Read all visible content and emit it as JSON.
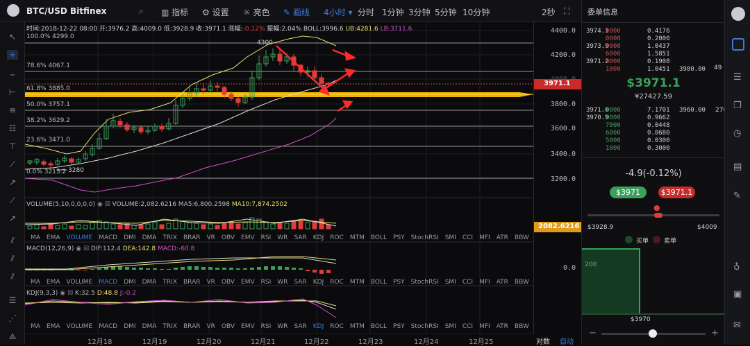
{
  "topbar": {
    "pair": "BTC/USD Bitfinex",
    "indicator": "指标",
    "settings": "设置",
    "brightness": "亮色",
    "draw": "画线",
    "interval_active": "4小时",
    "t1": "分时",
    "t2": "1分钟",
    "t3": "3分钟",
    "t4": "5分钟",
    "t5": "10分钟",
    "refresh": "2秒"
  },
  "info": {
    "time": "时间:2018-12-22 08:00",
    "open": "开:3976.2",
    "high": "高:4009.0",
    "low": "低:3928.9",
    "close": "收:3971.1",
    "chg_label": "涨幅:",
    "chg": "-0.12%",
    "amp": "振幅:2.04%",
    "boll": "BOLL:3996.6",
    "ub": "UB:4281.6",
    "lb": "LB:3711.6"
  },
  "fib": [
    {
      "label": "100.0% 4299.0"
    },
    {
      "label": "78.6% 4067.1"
    },
    {
      "label": "61.8% 3885.0"
    },
    {
      "label": "50.0% 3757.1"
    },
    {
      "label": "38.2% 3629.2"
    },
    {
      "label": "23.6% 3471.0"
    },
    {
      "label": "0.0% 3215.2"
    }
  ],
  "annot": {
    "high": "4300",
    "low": "3280"
  },
  "price_axis": [
    "4400.0",
    "4200.0",
    "4000.0",
    "3800.0",
    "3600.0",
    "3400.0",
    "3200.0"
  ],
  "last_price": "3971.1",
  "vol": {
    "title": "VOLUME(5,10,0,0,0,0)",
    "v": "VOLUME:2,082.6216",
    "ma5": "MA5:6,800.2598",
    "ma10": "MA10:7,874.2502",
    "axis": "2082.6216"
  },
  "macd": {
    "title": "MACD(12,26,9)",
    "dif": "DIF:112.4",
    "dea": "DEA:142.8",
    "macd": "MACD:-60.8",
    "axis": "0.0"
  },
  "kdj": {
    "title": "KDJ(9,3,3)",
    "k": "K:32.5",
    "d": "D:48.8",
    "j": "J:-0.2"
  },
  "tabs": [
    "MA",
    "EMA",
    "VOLUME",
    "MACD",
    "DMI",
    "DMA",
    "TRIX",
    "BRAR",
    "VR",
    "OBV",
    "EMV",
    "RSI",
    "WR",
    "SAR",
    "KDJ",
    "ROC",
    "MTM",
    "BOLL",
    "PSY",
    "StochRSI",
    "SMI",
    "CCI",
    "MFI",
    "ATR",
    "BBW"
  ],
  "xaxis": [
    "12月18",
    "12月19",
    "12月20",
    "12月21",
    "12月22",
    "12月23",
    "12月24",
    "12月25"
  ],
  "bottom": {
    "log": "对数",
    "auto": "自动"
  },
  "orderbook": {
    "title": "委单信息",
    "asks": [
      [
        "3974.1",
        "0000",
        "0.4176",
        ""
      ],
      [
        "",
        "0000",
        "0.2000",
        ""
      ],
      [
        "3973.9",
        "0000",
        "1.0437",
        ""
      ],
      [
        "",
        "6000",
        "1.5851",
        ""
      ],
      [
        "3971.2",
        "0000",
        "0.1908",
        ""
      ],
      [
        "",
        "1000",
        "1.0451",
        "3980.00"
      ]
    ],
    "ask_count": "49",
    "price": "$3971.1",
    "cny": "¥27427.59",
    "bids": [
      [
        "3971.0",
        "0000",
        "7.1701",
        "3960.00"
      ],
      [
        "3970.9",
        "0000",
        "0.9662",
        ""
      ],
      [
        "",
        "7000",
        "0.0448",
        ""
      ],
      [
        "",
        "6000",
        "0.0680",
        ""
      ],
      [
        "",
        "5000",
        "0.0300",
        ""
      ],
      [
        "",
        "1000",
        "0.3000",
        ""
      ]
    ],
    "bid_count": "270",
    "change": "-4.9(-0.12%)",
    "buy": "$3971",
    "sell": "$3971.1",
    "low": "$3928.9",
    "high": "$4009",
    "buy_label": "买单",
    "sell_label": "卖单",
    "depth_y": "200",
    "depth_price": "$3970"
  },
  "colors": {
    "up": "#3aa15a",
    "down": "#e03c3c",
    "accent": "#3b7ddb",
    "fib": "#f0b400"
  }
}
